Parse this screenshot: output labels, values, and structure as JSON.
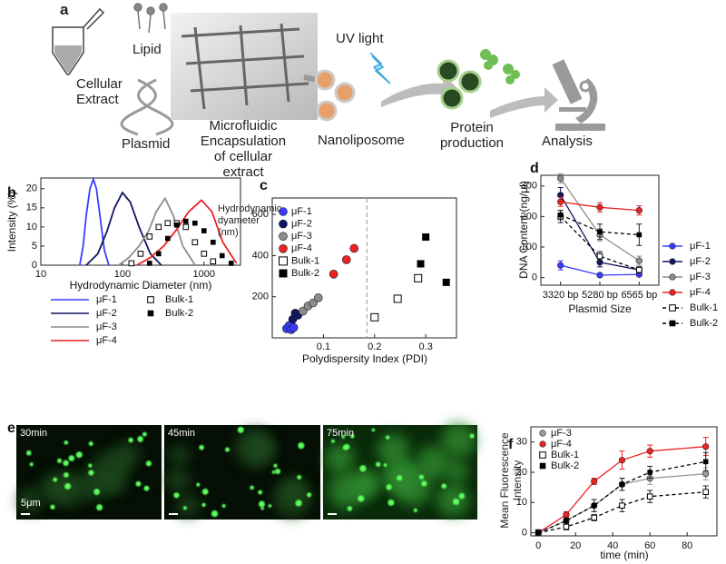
{
  "panel_a": {
    "label": "a",
    "lipid": "Lipid",
    "extract": "Cellular Extract",
    "plasmid": "Plasmid",
    "microfluidic": "Microfluidic Encapsulation of cellular extract",
    "uv": "UV light",
    "nanoliposome": "Nanoliposome",
    "protein": "Protein production",
    "analysis": "Analysis"
  },
  "chart_data": [
    {
      "panel": "b",
      "type": "line",
      "x_label": "Hydrodynamic Diameter (nm)",
      "y_label": "Intensity (%)",
      "log_x": true,
      "xlim": [
        10,
        2800
      ],
      "xticks": [
        10,
        100,
        1000
      ],
      "ylim": [
        0,
        22.8
      ],
      "yticks": [
        0,
        5,
        10,
        15,
        20
      ],
      "series": [
        {
          "name": "μF-1",
          "color": "#3b3bff",
          "marker": "none",
          "line": "solid",
          "x": [
            30,
            33,
            36,
            40,
            44,
            48,
            53,
            60,
            68
          ],
          "values": [
            0,
            5,
            13,
            20,
            22.5,
            20,
            13,
            4,
            0
          ]
        },
        {
          "name": "μF-2",
          "color": "#101560",
          "marker": "none",
          "line": "solid",
          "x": [
            36,
            50,
            65,
            80,
            100,
            125,
            160,
            220,
            300
          ],
          "values": [
            0,
            3,
            9,
            15,
            19,
            16.5,
            10,
            3,
            0
          ]
        },
        {
          "name": "μF-3",
          "color": "#8c8c8c",
          "marker": "none",
          "line": "solid",
          "x": [
            90,
            120,
            160,
            210,
            260,
            333,
            420,
            550,
            780
          ],
          "values": [
            0,
            2,
            5,
            9,
            14,
            17.5,
            13,
            5,
            0
          ]
        },
        {
          "name": "μF-4",
          "color": "#ee2222",
          "marker": "none",
          "line": "solid",
          "x": [
            150,
            220,
            320,
            450,
            650,
            930,
            1250,
            1700,
            2500
          ],
          "values": [
            0,
            2,
            5,
            9,
            14,
            17,
            14,
            6,
            0.5
          ]
        },
        {
          "name": "Bulk-1",
          "color": "#000000",
          "marker": "square-open",
          "line": "none",
          "x": [
            129,
            167,
            215,
            278,
            359,
            464,
            599,
            774,
            1000,
            1292
          ],
          "values": [
            0.5,
            3,
            7.5,
            10,
            11,
            11,
            10,
            6,
            3,
            1
          ]
        },
        {
          "name": "Bulk-2",
          "color": "#000000",
          "marker": "square",
          "line": "none",
          "x": [
            215,
            278,
            359,
            464,
            599,
            774,
            1000,
            1292,
            1668,
            2154
          ],
          "values": [
            0.5,
            3,
            7,
            10.5,
            11.5,
            11,
            9,
            6,
            2.5,
            0.5
          ]
        }
      ]
    },
    {
      "panel": "c",
      "type": "scatter",
      "x_label": "Polydispersity Index (PDI)",
      "y_label": "Hydrodynamic dyameter (nm)",
      "xlim": [
        0,
        0.36
      ],
      "xticks": [
        0.1,
        0.2,
        0.3
      ],
      "ylim": [
        0,
        680
      ],
      "yticks": [
        200,
        400,
        600
      ],
      "reference_x": 0.185,
      "series": [
        {
          "name": "μF-1",
          "color": "#3b3bff",
          "marker": "circle",
          "x": [
            0.028,
            0.033,
            0.037,
            0.042
          ],
          "values": [
            45,
            60,
            40,
            50
          ]
        },
        {
          "name": "μF-2",
          "color": "#101560",
          "marker": "circle",
          "x": [
            0.04,
            0.045,
            0.05
          ],
          "values": [
            90,
            120,
            110
          ]
        },
        {
          "name": "μF-3",
          "color": "#8c8c8c",
          "marker": "circle",
          "x": [
            0.06,
            0.07,
            0.08,
            0.09
          ],
          "values": [
            130,
            155,
            170,
            195
          ]
        },
        {
          "name": "μF-4",
          "color": "#ee2222",
          "marker": "circle",
          "x": [
            0.12,
            0.145,
            0.16
          ],
          "values": [
            310,
            380,
            435
          ]
        },
        {
          "name": "Bulk-1",
          "color": "#000000",
          "marker": "square-open",
          "x": [
            0.2,
            0.245,
            0.285
          ],
          "values": [
            100,
            190,
            290
          ]
        },
        {
          "name": "Bulk-2",
          "color": "#000000",
          "marker": "square",
          "x": [
            0.29,
            0.3,
            0.34
          ],
          "values": [
            360,
            490,
            270
          ]
        }
      ]
    },
    {
      "panel": "d",
      "type": "line",
      "x_label": "Plasmid Size",
      "y_label": "DNA Content (ng/μl)",
      "categories": [
        "3320 bp",
        "5280 bp",
        "6565 bp"
      ],
      "ylim": [
        -25,
        335
      ],
      "yticks": [
        0,
        100,
        200,
        300
      ],
      "series": [
        {
          "name": "μF-1",
          "color": "#3b3bff",
          "marker": "circle",
          "line": "solid",
          "values": [
            40,
            8,
            10
          ],
          "errors": [
            15,
            5,
            5
          ]
        },
        {
          "name": "μF-2",
          "color": "#101560",
          "marker": "circle",
          "line": "solid",
          "values": [
            270,
            50,
            25
          ],
          "errors": [
            25,
            15,
            10
          ]
        },
        {
          "name": "μF-3",
          "color": "#8c8c8c",
          "marker": "circle",
          "line": "solid",
          "values": [
            325,
            140,
            55
          ],
          "errors": [
            15,
            20,
            15
          ]
        },
        {
          "name": "μF-4",
          "color": "#ee2222",
          "marker": "circle",
          "line": "solid",
          "values": [
            248,
            230,
            220
          ],
          "errors": [
            15,
            15,
            15
          ]
        },
        {
          "name": "Bulk-1",
          "color": "#000000",
          "marker": "square-open",
          "line": "dashed",
          "values": [
            200,
            70,
            25
          ],
          "errors": [
            20,
            15,
            10
          ]
        },
        {
          "name": "Bulk-2",
          "color": "#000000",
          "marker": "square",
          "line": "dashed",
          "values": [
            205,
            150,
            140
          ],
          "errors": [
            15,
            25,
            35
          ]
        }
      ]
    },
    {
      "panel": "f",
      "type": "line",
      "x_label": "time (min)",
      "y_label": "Mean Fluorescence Intensity",
      "x": [
        0,
        15,
        30,
        45,
        60,
        90
      ],
      "xlim": [
        -4,
        96
      ],
      "xticks": [
        0,
        20,
        40,
        60,
        80
      ],
      "ylim": [
        -1,
        35
      ],
      "yticks": [
        0,
        10,
        20,
        30
      ],
      "series": [
        {
          "name": "μF-3",
          "color": "#9a9a9a",
          "marker": "circle",
          "line": "solid",
          "values": [
            0,
            4,
            9,
            16,
            18,
            19.5
          ],
          "errors": [
            1,
            1,
            2,
            2,
            2,
            2
          ]
        },
        {
          "name": "μF-4",
          "color": "#ee2222",
          "marker": "circle",
          "line": "solid",
          "values": [
            0,
            6,
            17,
            24,
            27,
            28.5
          ],
          "errors": [
            1,
            1,
            1,
            3,
            2,
            3
          ]
        },
        {
          "name": "Bulk-1",
          "color": "#000000",
          "marker": "square-open",
          "line": "dashed",
          "values": [
            0,
            2,
            5,
            9,
            12,
            13.5
          ],
          "errors": [
            1,
            1,
            1,
            2,
            2,
            2
          ]
        },
        {
          "name": "Bulk-2",
          "color": "#000000",
          "marker": "square",
          "line": "dashed",
          "values": [
            0,
            4,
            9,
            16,
            20,
            23.5
          ],
          "errors": [
            1,
            1,
            2,
            2,
            2,
            3
          ]
        }
      ]
    }
  ],
  "panel_e": {
    "label": "e",
    "images": [
      "30min",
      "45min",
      "75min"
    ],
    "scale_bar": "5μm"
  }
}
